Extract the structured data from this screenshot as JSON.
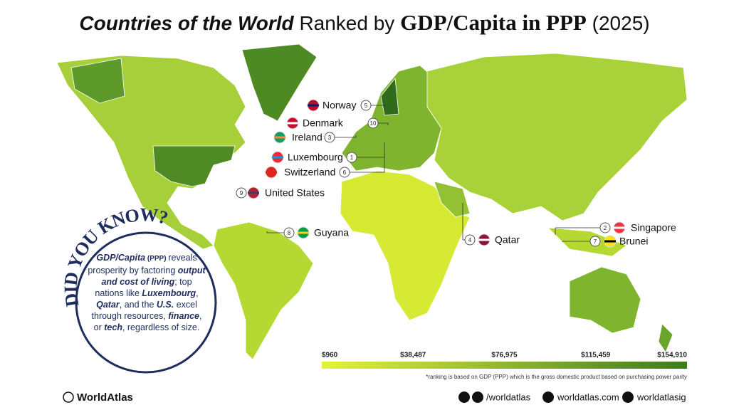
{
  "title": {
    "lead": "Countries of the World",
    "middle": "Ranked by",
    "metric": "GDP/Capita in PPP",
    "year": "(2025)"
  },
  "labels": [
    {
      "rank": "5",
      "name": "Norway"
    },
    {
      "rank": "10",
      "name": "Denmark"
    },
    {
      "rank": "3",
      "name": "Ireland"
    },
    {
      "rank": "1",
      "name": "Luxembourg"
    },
    {
      "rank": "6",
      "name": "Switzerland"
    },
    {
      "rank": "9",
      "name": "United States"
    },
    {
      "rank": "8",
      "name": "Guyana"
    },
    {
      "rank": "4",
      "name": "Qatar"
    },
    {
      "rank": "2",
      "name": "Singapore"
    },
    {
      "rank": "7",
      "name": "Brunei"
    }
  ],
  "did_you_know": {
    "heading": "DID YOU KNOW?",
    "body": [
      "GDP/Capita",
      " (PPP) ",
      "reveals prosperity by factoring ",
      "output and cost of living",
      "; top nations like ",
      "Luxembourg",
      ", ",
      "Qatar",
      ", and the ",
      "U.S.",
      " excel through resources, ",
      "finance",
      ", or ",
      "tech",
      ", regardless of size."
    ]
  },
  "legend": {
    "ticks": [
      "$960",
      "$38,487",
      "$76,975",
      "$115,459",
      "$154,910"
    ]
  },
  "footnote": "*ranking is based on GDP (PPP) which is the gross domestic product based on purchasing power parity",
  "footer": {
    "brand": "WorldAtlas",
    "social": "/worldatlas",
    "site": "worldatlas.com",
    "instagram": "worldatlasig"
  }
}
